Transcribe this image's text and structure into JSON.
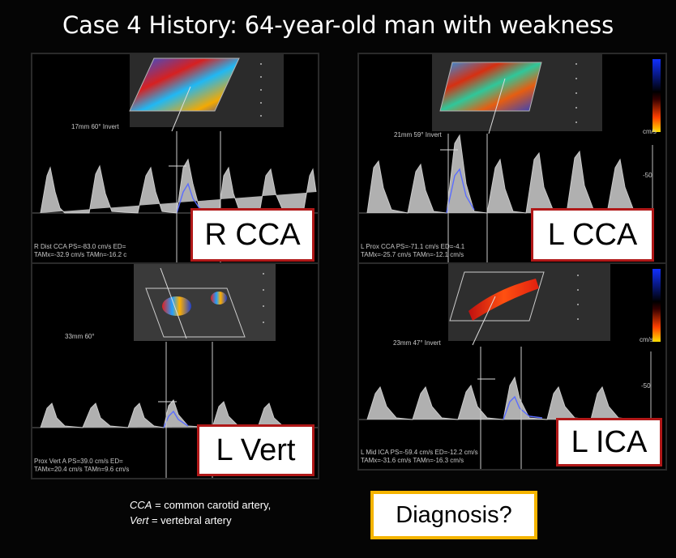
{
  "title": "Case 4 History:  64-year-old man with weakness",
  "panels": [
    {
      "label": "R CCA",
      "depth_text": "17mm  60° Invert",
      "meas_line1": "R Dist CCA     PS=-83.0 cm/s   ED=",
      "meas_line2": "TAMx=-32.9 cm/s   TAMn=-16.2 c"
    },
    {
      "label": "L CCA",
      "depth_text": "21mm  59° Invert",
      "meas_line1": "L Prox CCA     PS=-71.1 cm/s   ED=-4.1",
      "meas_line2": "TAMx=-25.7 cm/s   TAMn=-12.1 cm/s",
      "scale_mark": "-50",
      "unit": "cm/s"
    },
    {
      "label": "L Vert",
      "depth_text": "33mm  60°",
      "meas_line1": "Prox Vert A     PS=39.0 cm/s    ED=",
      "meas_line2": "TAMx=20.4 cm/s   TAMn=9.6 cm/s"
    },
    {
      "label": "L ICA",
      "depth_text": "23mm  47° Invert",
      "meas_line1": "L Mid ICA     PS=-59.4 cm/s   ED=-12.2 cm/s",
      "meas_line2": "TAMx=-31.6 cm/s   TAMn=-16.3 cm/s",
      "scale_mark": "-50",
      "unit": "cm/s"
    }
  ],
  "footnote": {
    "line1_abbr": "CCA",
    "line1_text": " = common carotid artery,",
    "line2_abbr": "Vert",
    "line2_text": " = vertebral artery"
  },
  "diagnosis": "Diagnosis?",
  "colors": {
    "label_border": "#b01818",
    "diagnosis_border": "#f5b400",
    "spectral_trace": "#5a6cff"
  }
}
